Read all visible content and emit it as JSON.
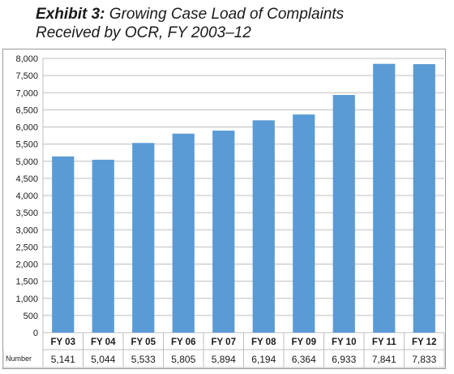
{
  "title": {
    "label": "Exhibit 3:",
    "line1": "Growing Case Load of Complaints",
    "line2": "Received by OCR, FY 2003–12"
  },
  "table": {
    "row_label": "Number"
  },
  "colors": {
    "bar": "#5b9bd5",
    "grid": "#bfbfbf",
    "border": "#9a9a9a"
  },
  "chart_data": {
    "type": "bar",
    "categories": [
      "FY 03",
      "FY 04",
      "FY 05",
      "FY 06",
      "FY 07",
      "FY 08",
      "FY 09",
      "FY 10",
      "FY 11",
      "FY 12"
    ],
    "values": [
      5141,
      5044,
      5533,
      5805,
      5894,
      6194,
      6364,
      6933,
      7841,
      7833
    ],
    "value_labels": [
      "5,141",
      "5,044",
      "5,533",
      "5,805",
      "5,894",
      "6,194",
      "6,364",
      "6,933",
      "7,841",
      "7,833"
    ],
    "ylim": [
      0,
      8000
    ],
    "yticks": [
      0,
      500,
      1000,
      1500,
      2000,
      2500,
      3000,
      3500,
      4000,
      4500,
      5000,
      5500,
      6000,
      6500,
      7000,
      7500,
      8000
    ],
    "ytick_labels": [
      "0",
      "500",
      "1,000",
      "1,500",
      "2,000",
      "2,500",
      "3,000",
      "3,500",
      "4,000",
      "4,500",
      "5,000",
      "5,500",
      "6,000",
      "6,500",
      "7,000",
      "7,500",
      "8,000"
    ],
    "grid": true,
    "legend": "none"
  }
}
